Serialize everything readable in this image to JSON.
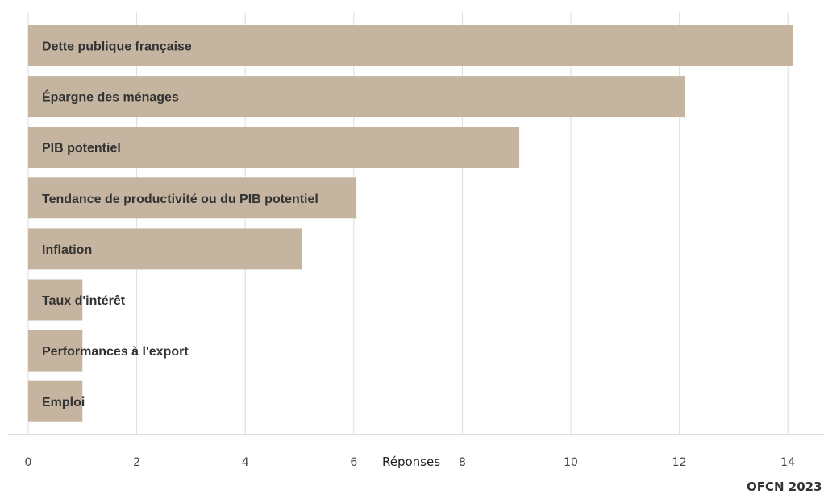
{
  "chart_data": {
    "type": "bar",
    "orientation": "horizontal",
    "categories": [
      "Dette publique française",
      "Épargne des ménages",
      "PIB potentiel",
      "Tendance de productivité ou du PIB potentiel",
      "Inflation",
      "Taux d'intérêt",
      "Performances à l'export",
      "Emploi"
    ],
    "values": [
      14.1,
      12.1,
      9.05,
      6.05,
      5.05,
      1.0,
      1.0,
      1.0
    ],
    "xlabel": "Réponses",
    "xlim": [
      0,
      14.5
    ],
    "xticks": [
      0,
      2,
      4,
      6,
      8,
      10,
      12,
      14
    ],
    "grid": "vertical",
    "bar_color": "#c5b5a0",
    "grid_color": "#dddddd",
    "label_position": "inside-left"
  },
  "source": "OFCN 2023"
}
